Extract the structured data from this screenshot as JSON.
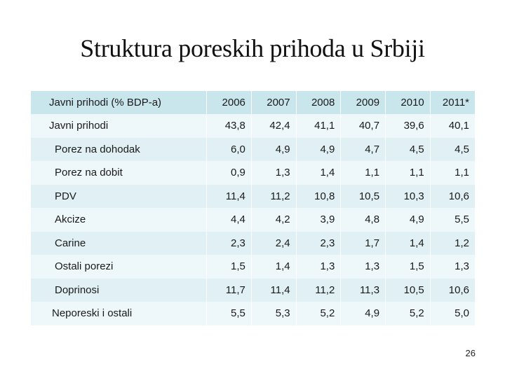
{
  "title": "Struktura poreskih prihoda u Srbiji",
  "table": {
    "header": [
      "Javni prihodi (% BDP-a)",
      "2006",
      "2007",
      "2008",
      "2009",
      "2010",
      "2011*"
    ],
    "rows": [
      {
        "label": "Javni prihodi",
        "values": [
          "43,8",
          "42,4",
          "41,1",
          "40,7",
          "39,6",
          "40,1"
        ]
      },
      {
        "label": "Porez na dohodak",
        "values": [
          "6,0",
          "4,9",
          "4,9",
          "4,7",
          "4,5",
          "4,5"
        ]
      },
      {
        "label": "Porez na dobit",
        "values": [
          "0,9",
          "1,3",
          "1,4",
          "1,1",
          "1,1",
          "1,1"
        ]
      },
      {
        "label": "PDV",
        "values": [
          "11,4",
          "11,2",
          "10,8",
          "10,5",
          "10,3",
          "10,6"
        ]
      },
      {
        "label": "Akcize",
        "values": [
          "4,4",
          "4,2",
          "3,9",
          "4,8",
          "4,9",
          "5,5"
        ]
      },
      {
        "label": "Carine",
        "values": [
          "2,3",
          "2,4",
          "2,3",
          "1,7",
          "1,4",
          "1,2"
        ]
      },
      {
        "label": "Ostali porezi",
        "values": [
          "1,5",
          "1,4",
          "1,3",
          "1,3",
          "1,5",
          "1,3"
        ]
      },
      {
        "label": "Doprinosi",
        "values": [
          "11,7",
          "11,4",
          "11,2",
          "11,3",
          "10,5",
          "10,6"
        ]
      },
      {
        "label": "Neporeski i ostali",
        "values": [
          "5,5",
          "5,3",
          "5,2",
          "4,9",
          "5,2",
          "5,0"
        ]
      }
    ]
  },
  "page_number": "26",
  "colors": {
    "header_bg": "#c9e6ec",
    "row_light": "#eef7f9",
    "row_dark": "#e0f0f4"
  }
}
